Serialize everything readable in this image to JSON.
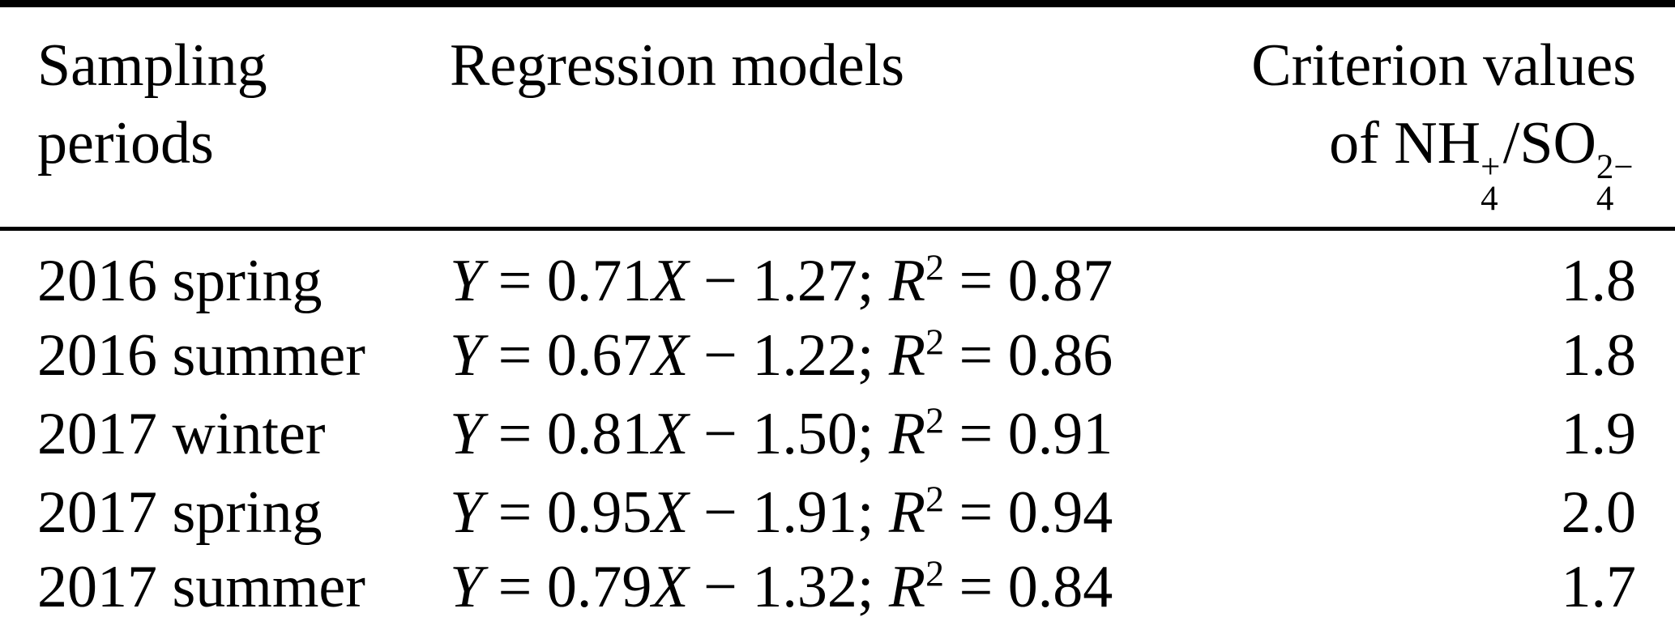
{
  "page": {
    "background": "#ffffff",
    "text_color": "#000000",
    "rule_color": "#000000"
  },
  "header": {
    "col1": {
      "line1": "Sampling",
      "line2": "periods"
    },
    "col2": {
      "line1": "Regression models"
    },
    "col3": {
      "line1": "Criterion values",
      "formula": {
        "prefix": "of ",
        "ion1": {
          "base": "NH",
          "sup": "+",
          "sub": "4"
        },
        "separator": "/",
        "ion2": {
          "base": "SO",
          "sup": "2−",
          "sub": "4"
        }
      }
    }
  },
  "equation_format": {
    "y_var": "Y",
    "equals": " = ",
    "x_var": "X",
    "minus": " − ",
    "separator": "; ",
    "r_var": "R",
    "r_exponent": "2"
  },
  "rows": [
    {
      "period": "2016 spring",
      "slope": "0.71",
      "intercept": "1.27",
      "r_squared": "0.87",
      "criterion": "1.8"
    },
    {
      "period": "2016 summer",
      "slope": "0.67",
      "intercept": "1.22",
      "r_squared": "0.86",
      "criterion": "1.8"
    },
    {
      "period": "2017 winter",
      "slope": "0.81",
      "intercept": "1.50",
      "r_squared": "0.91",
      "criterion": "1.9"
    },
    {
      "period": "2017 spring",
      "slope": "0.95",
      "intercept": "1.91",
      "r_squared": "0.94",
      "criterion": "2.0"
    },
    {
      "period": "2017 summer",
      "slope": "0.79",
      "intercept": "1.32",
      "r_squared": "0.84",
      "criterion": "1.7"
    }
  ]
}
